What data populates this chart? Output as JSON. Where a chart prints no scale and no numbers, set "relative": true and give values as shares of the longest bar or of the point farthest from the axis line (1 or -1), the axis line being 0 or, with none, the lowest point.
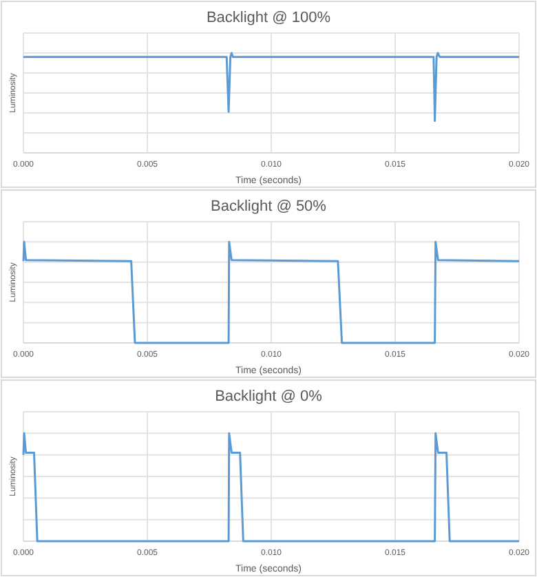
{
  "chart_data": [
    {
      "type": "line",
      "title": "Backlight @ 100%",
      "xlabel": "Time (seconds)",
      "ylabel": "Luminosity",
      "relative": true,
      "grid": true,
      "tick_labels": "x",
      "line_style": "solid",
      "xlim": [
        0,
        0.02
      ],
      "xticks": [
        {
          "value": 0,
          "label": "0.000"
        },
        {
          "value": 0.005,
          "label": "0.005"
        },
        {
          "value": 0.01,
          "label": "0.010"
        },
        {
          "value": 0.015,
          "label": "0.015"
        },
        {
          "value": 0.02,
          "label": "0.020"
        }
      ],
      "series": [
        {
          "color": "#5b9bd5",
          "x": [
            0,
            0.0082,
            0.00828,
            0.00835,
            0.0084,
            0.00845,
            0.01655,
            0.0166,
            0.01667,
            0.01672,
            0.0168,
            0.02
          ],
          "values": [
            0.96,
            0.96,
            0.41,
            0.96,
            1,
            0.96,
            0.96,
            0.32,
            0.96,
            1,
            0.96,
            0.96
          ]
        }
      ]
    },
    {
      "type": "line",
      "title": "Backlight @ 50%",
      "xlabel": "Time (seconds)",
      "ylabel": "Luminosity",
      "relative": true,
      "grid": true,
      "tick_labels": "x",
      "line_style": "solid",
      "xlim": [
        0,
        0.02
      ],
      "xticks": [
        {
          "value": 0,
          "label": "0.000"
        },
        {
          "value": 0.005,
          "label": "0.005"
        },
        {
          "value": 0.01,
          "label": "0.010"
        },
        {
          "value": 0.015,
          "label": "0.015"
        },
        {
          "value": 0.02,
          "label": "0.020"
        }
      ],
      "series": [
        {
          "color": "#5b9bd5",
          "x": [
            0,
            3e-05,
            0.0001,
            0.00435,
            0.0045,
            0.00828,
            0.0083,
            0.0084,
            0.01269,
            0.01285,
            0.0166,
            0.01663,
            0.01673,
            0.02
          ],
          "values": [
            0.81,
            1,
            0.82,
            0.81,
            0,
            0,
            1,
            0.82,
            0.81,
            0,
            0,
            1,
            0.82,
            0.81
          ]
        }
      ]
    },
    {
      "type": "line",
      "title": "Backlight @ 0%",
      "xlabel": "Time (seconds)",
      "ylabel": "Luminosity",
      "relative": true,
      "grid": true,
      "tick_labels": "x",
      "line_style": "solid",
      "xlim": [
        0,
        0.02
      ],
      "xticks": [
        {
          "value": 0,
          "label": "0.000"
        },
        {
          "value": 0.005,
          "label": "0.005"
        },
        {
          "value": 0.01,
          "label": "0.010"
        },
        {
          "value": 0.015,
          "label": "0.015"
        },
        {
          "value": 0.02,
          "label": "0.020"
        }
      ],
      "series": [
        {
          "color": "#5b9bd5",
          "x": [
            0,
            3e-05,
            0.0001,
            0.00043,
            0.00056,
            0.00828,
            0.0083,
            0.0084,
            0.00874,
            0.00887,
            0.0166,
            0.01663,
            0.01673,
            0.01707,
            0.0172,
            0.02
          ],
          "values": [
            0.8,
            1,
            0.82,
            0.82,
            0,
            0,
            1,
            0.82,
            0.82,
            0,
            0,
            1,
            0.82,
            0.82,
            0,
            0
          ]
        }
      ]
    }
  ]
}
